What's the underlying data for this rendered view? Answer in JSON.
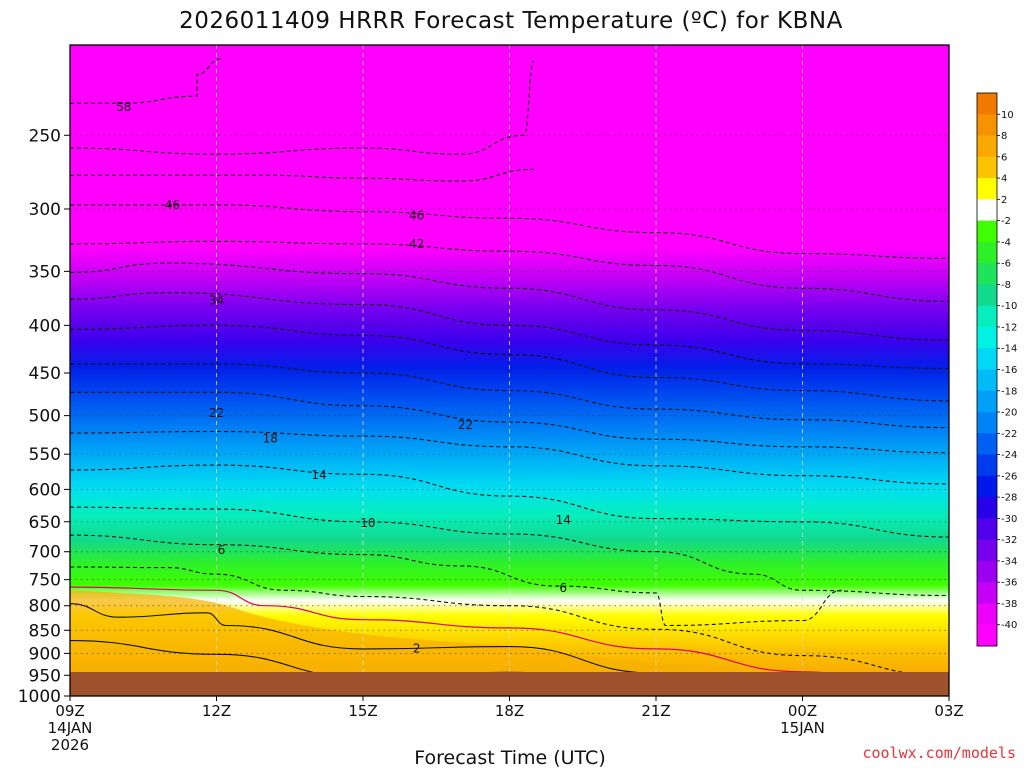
{
  "chart_data": {
    "type": "heatmap",
    "title": "2026011409 HRRR Forecast Temperature (ºC) for KBNA",
    "xlabel": "Forecast Time (UTC)",
    "ylabel": "",
    "credit": "coolwx.com/models",
    "x_ticks": [
      {
        "hour": 0,
        "lines": [
          "09Z",
          "14JAN",
          "2026"
        ]
      },
      {
        "hour": 3,
        "lines": [
          "12Z"
        ]
      },
      {
        "hour": 6,
        "lines": [
          "15Z"
        ]
      },
      {
        "hour": 9,
        "lines": [
          "18Z"
        ]
      },
      {
        "hour": 12,
        "lines": [
          "21Z"
        ]
      },
      {
        "hour": 15,
        "lines": [
          "00Z",
          "15JAN"
        ]
      },
      {
        "hour": 18,
        "lines": [
          "03Z"
        ]
      }
    ],
    "xlim": [
      0,
      18
    ],
    "y_ticks": [
      250,
      300,
      350,
      400,
      450,
      500,
      550,
      600,
      650,
      700,
      750,
      800,
      850,
      900,
      950,
      1000
    ],
    "ylim_hPa": [
      200,
      1000
    ],
    "colorbar": {
      "labels": [
        10,
        8,
        6,
        4,
        2,
        -2,
        -4,
        -6,
        -8,
        -10,
        -12,
        -14,
        -16,
        -18,
        -20,
        -22,
        -24,
        -26,
        -28,
        -30,
        -32,
        -34,
        -36,
        -38,
        -40
      ],
      "colors": [
        "#f07a00",
        "#f59200",
        "#f8aa00",
        "#fbc400",
        "#fefe00",
        "#ffffff",
        "#3ffe00",
        "#2ef02a",
        "#1fe35b",
        "#12d98c",
        "#06eebb",
        "#00f2e4",
        "#00d8f6",
        "#00bcf6",
        "#00a0f6",
        "#0084f5",
        "#0060f2",
        "#003cee",
        "#0018ea",
        "#2800ea",
        "#5000ec",
        "#7400ef",
        "#9c00f2",
        "#c400f6",
        "#ec00fa",
        "#ff00ff"
      ]
    },
    "contour_labels": [
      {
        "text": "58",
        "hour": 1.1,
        "p": 233
      },
      {
        "text": "46",
        "hour": 2.1,
        "p": 297
      },
      {
        "text": "46",
        "hour": 7.1,
        "p": 305
      },
      {
        "text": "42",
        "hour": 7.1,
        "p": 327
      },
      {
        "text": "34",
        "hour": 3.0,
        "p": 376
      },
      {
        "text": "22",
        "hour": 3.0,
        "p": 497
      },
      {
        "text": "22",
        "hour": 8.1,
        "p": 512
      },
      {
        "text": "18",
        "hour": 4.1,
        "p": 529
      },
      {
        "text": "14",
        "hour": 5.1,
        "p": 579
      },
      {
        "text": "14",
        "hour": 10.1,
        "p": 647
      },
      {
        "text": "10",
        "hour": 6.1,
        "p": 652
      },
      {
        "text": "6",
        "hour": 3.1,
        "p": 697
      },
      {
        "text": "6",
        "hour": 10.1,
        "p": 766
      },
      {
        "text": "2",
        "hour": 7.1,
        "p": 889
      }
    ],
    "series": [
      {
        "name": "-58 isotherm",
        "style": "dashed",
        "points": [
          [
            0,
            231
          ],
          [
            1.1,
            231
          ],
          [
            2.6,
            227
          ],
          [
            2.6,
            215
          ],
          [
            3.1,
            207
          ]
        ]
      },
      {
        "name": "-50 isotherm",
        "style": "dashed",
        "points": [
          [
            0,
            258
          ],
          [
            3,
            262
          ],
          [
            6,
            258
          ],
          [
            8,
            262
          ],
          [
            9.3,
            250
          ],
          [
            9.5,
            208
          ]
        ]
      },
      {
        "name": "-48 isotherm",
        "style": "dashed",
        "points": [
          [
            0,
            276
          ],
          [
            4,
            276
          ],
          [
            6,
            278
          ],
          [
            8,
            280
          ],
          [
            9.5,
            272
          ]
        ]
      },
      {
        "name": "-46 isotherm",
        "style": "dashed",
        "points": [
          [
            0,
            297
          ],
          [
            3,
            297
          ],
          [
            6,
            302
          ],
          [
            9,
            307
          ],
          [
            12,
            318
          ],
          [
            15,
            335
          ],
          [
            18,
            339
          ]
        ]
      },
      {
        "name": "-42 isotherm",
        "style": "dashed",
        "points": [
          [
            0,
            327
          ],
          [
            3,
            325
          ],
          [
            6,
            327
          ],
          [
            9,
            333
          ],
          [
            12,
            345
          ],
          [
            15,
            365
          ],
          [
            18,
            377
          ]
        ]
      },
      {
        "name": "-38 isotherm",
        "style": "dashed",
        "points": [
          [
            0,
            351
          ],
          [
            2,
            343
          ],
          [
            6,
            352
          ],
          [
            9,
            365
          ],
          [
            12,
            385
          ],
          [
            15,
            405
          ],
          [
            18,
            415
          ]
        ]
      },
      {
        "name": "-34 isotherm",
        "style": "dashed",
        "points": [
          [
            0,
            375
          ],
          [
            2,
            369
          ],
          [
            6,
            380
          ],
          [
            9,
            400
          ],
          [
            12,
            420
          ],
          [
            15,
            440
          ],
          [
            18,
            445
          ]
        ]
      },
      {
        "name": "-30 isotherm",
        "style": "dashed",
        "points": [
          [
            0,
            404
          ],
          [
            3,
            400
          ],
          [
            6,
            410
          ],
          [
            9,
            430
          ],
          [
            12,
            455
          ],
          [
            15,
            470
          ],
          [
            18,
            482
          ]
        ]
      },
      {
        "name": "-26 isotherm",
        "style": "dashed",
        "points": [
          [
            0,
            440
          ],
          [
            3,
            440
          ],
          [
            6,
            450
          ],
          [
            9,
            470
          ],
          [
            12,
            492
          ],
          [
            15,
            505
          ],
          [
            18,
            515
          ]
        ]
      },
      {
        "name": "-22 isotherm",
        "style": "dashed",
        "points": [
          [
            0,
            472
          ],
          [
            3,
            472
          ],
          [
            6,
            488
          ],
          [
            9,
            508
          ],
          [
            12,
            530
          ],
          [
            15,
            540
          ],
          [
            18,
            548
          ]
        ]
      },
      {
        "name": "-18 isotherm",
        "style": "dashed",
        "points": [
          [
            0,
            522
          ],
          [
            3,
            520
          ],
          [
            6,
            526
          ],
          [
            9,
            540
          ],
          [
            12,
            566
          ],
          [
            15,
            580
          ],
          [
            18,
            592
          ]
        ]
      },
      {
        "name": "-14 isotherm",
        "style": "dashed",
        "points": [
          [
            0,
            572
          ],
          [
            3,
            565
          ],
          [
            6,
            578
          ],
          [
            9,
            610
          ],
          [
            12,
            645
          ],
          [
            15,
            650
          ],
          [
            18,
            675
          ]
        ]
      },
      {
        "name": "-10 isotherm",
        "style": "dashed",
        "points": [
          [
            0,
            627
          ],
          [
            3,
            630
          ],
          [
            6,
            650
          ],
          [
            9,
            670
          ],
          [
            12,
            700
          ],
          [
            14,
            740
          ],
          [
            15,
            770
          ],
          [
            18,
            780
          ]
        ]
      },
      {
        "name": "-6 isotherm",
        "style": "dashed",
        "points": [
          [
            0,
            672
          ],
          [
            3,
            688
          ],
          [
            6,
            705
          ],
          [
            8,
            725
          ],
          [
            10,
            762
          ],
          [
            12,
            775
          ],
          [
            12.2,
            840
          ],
          [
            15,
            830
          ],
          [
            15.8,
            770
          ]
        ]
      },
      {
        "name": "-2 isotherm",
        "style": "dashed",
        "points": [
          [
            0,
            727
          ],
          [
            2,
            728
          ],
          [
            3,
            740
          ],
          [
            4.4,
            770
          ],
          [
            6,
            782
          ],
          [
            9,
            800
          ],
          [
            12,
            848
          ],
          [
            15,
            905
          ],
          [
            18,
            952
          ]
        ]
      },
      {
        "name": "0 isotherm",
        "style": "solid-magenta",
        "points": [
          [
            0,
            764
          ],
          [
            3,
            770
          ],
          [
            4,
            800
          ],
          [
            6,
            828
          ],
          [
            9,
            845
          ],
          [
            12,
            890
          ],
          [
            15,
            942
          ],
          [
            17,
            965
          ],
          [
            18,
            990
          ]
        ]
      },
      {
        "name": "2 isotherm",
        "style": "solid",
        "points": [
          [
            0,
            796
          ],
          [
            1,
            823
          ],
          [
            2.8,
            814
          ],
          [
            3.2,
            840
          ],
          [
            6,
            890
          ],
          [
            9,
            885
          ],
          [
            12,
            945
          ],
          [
            15,
            985
          ],
          [
            15.5,
            1000
          ]
        ]
      },
      {
        "name": "4 isotherm",
        "style": "solid",
        "points": [
          [
            0,
            872
          ],
          [
            3,
            902
          ],
          [
            6,
            955
          ],
          [
            9,
            943
          ],
          [
            12,
            975
          ],
          [
            14,
            992
          ]
        ]
      },
      {
        "name": "6 isotherm",
        "style": "solid",
        "points": [
          [
            0,
            965
          ],
          [
            3,
            978
          ],
          [
            4,
            992
          ]
        ]
      }
    ]
  }
}
